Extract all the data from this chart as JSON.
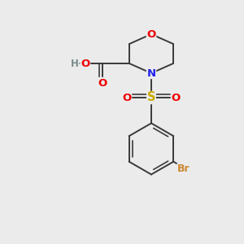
{
  "bg_color": "#ebebeb",
  "bond_color": "#3a3a3a",
  "bond_width": 1.4,
  "atom_colors": {
    "O": "#ee0000",
    "N": "#2020ee",
    "S": "#ccaa00",
    "Br": "#cc8833",
    "H": "#7a8a8a",
    "C": "#3a3a3a"
  },
  "font_size": 9.5
}
